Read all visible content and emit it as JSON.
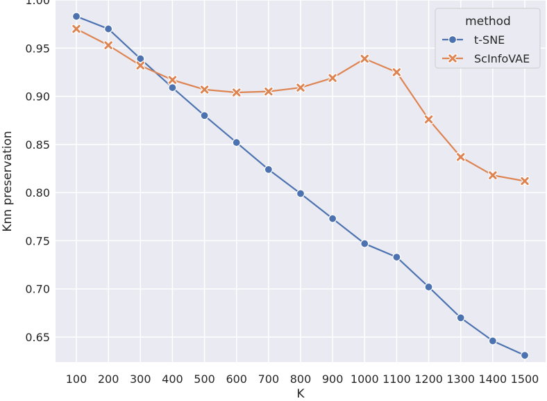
{
  "chart_data": {
    "type": "line",
    "xlabel": "K",
    "ylabel": "Knn preservation",
    "x": [
      100,
      200,
      300,
      400,
      500,
      600,
      700,
      800,
      900,
      1000,
      1100,
      1200,
      1300,
      1400,
      1500
    ],
    "xticks": [
      "100",
      "200",
      "300",
      "400",
      "500",
      "600",
      "700",
      "800",
      "900",
      "1000",
      "1100",
      "1200",
      "1300",
      "1400",
      "1500"
    ],
    "yticks": [
      "0.65",
      "0.70",
      "0.75",
      "0.80",
      "0.85",
      "0.90",
      "0.95",
      "1.00"
    ],
    "ylim": [
      0.624,
      1.0
    ],
    "grid": true,
    "background": "#eaeaf2",
    "legend": {
      "title": "method",
      "placement": "top-right"
    },
    "series": [
      {
        "name": "t-SNE",
        "color": "#4c72b0",
        "marker": "circle",
        "values": [
          0.983,
          0.97,
          0.939,
          0.909,
          0.88,
          0.852,
          0.824,
          0.799,
          0.773,
          0.747,
          0.733,
          0.702,
          0.67,
          0.646,
          0.631
        ]
      },
      {
        "name": "ScInfoVAE",
        "color": "#dd8452",
        "marker": "x",
        "values": [
          0.97,
          0.953,
          0.932,
          0.917,
          0.907,
          0.904,
          0.905,
          0.909,
          0.919,
          0.939,
          0.925,
          0.876,
          0.837,
          0.818,
          0.812
        ]
      }
    ]
  }
}
